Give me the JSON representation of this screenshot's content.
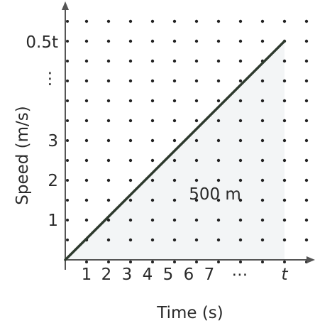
{
  "chart_data": {
    "type": "line",
    "xlabel": "Time (s)",
    "ylabel": "Speed (m/s)",
    "x_tick_labels": [
      "1",
      "2",
      "3",
      "4",
      "5",
      "6",
      "7",
      "⋯",
      "t"
    ],
    "y_tick_labels": [
      "1",
      "2",
      "3",
      "⋮",
      "0.5t"
    ],
    "series": [
      {
        "x": [
          0,
          "t"
        ],
        "y": [
          0,
          "0.5t"
        ]
      }
    ],
    "annotations": [
      {
        "text": "500 m"
      }
    ],
    "shaded_region": "area under line",
    "grid": "dotted",
    "colors": {
      "line": "#2e3a2e",
      "fill": "#f3f5f6",
      "axis": "#555555",
      "dots": "#222222",
      "text": "#2a2a2a"
    }
  }
}
